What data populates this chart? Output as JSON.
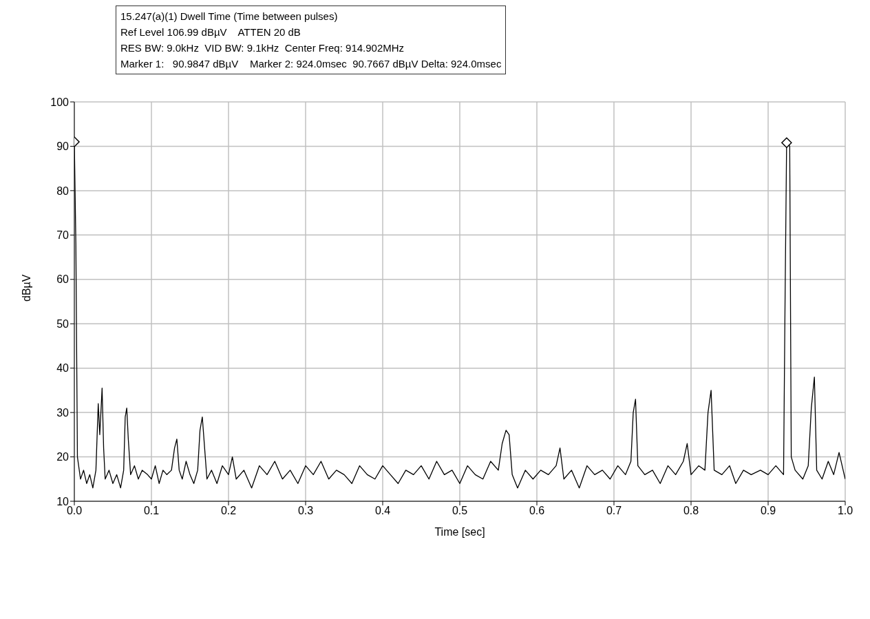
{
  "chart_data": {
    "type": "line",
    "title": "15.247(a)(1) Dwell Time (Time between pulses)",
    "annotations": [
      "Ref Level 106.99 dBµV    ATTEN 20 dB",
      "RES BW: 9.0kHz  VID BW: 9.1kHz  Center Freq: 914.902MHz",
      "Marker 1:   90.9847 dBµV    Marker 2: 924.0msec  90.7667 dBµV Delta: 924.0msec"
    ],
    "xlabel": "Time [sec]",
    "ylabel": "dBµV",
    "xlim": [
      0,
      1
    ],
    "xticks": [
      {
        "value": 0,
        "label": "0.0"
      },
      {
        "value": 0.1,
        "label": "0.1"
      },
      {
        "value": 0.2,
        "label": "0.2"
      },
      {
        "value": 0.3,
        "label": "0.3"
      },
      {
        "value": 0.4,
        "label": "0.4"
      },
      {
        "value": 0.5,
        "label": "0.5"
      },
      {
        "value": 0.6,
        "label": "0.6"
      },
      {
        "value": 0.7,
        "label": "0.7"
      },
      {
        "value": 0.8,
        "label": "0.8"
      },
      {
        "value": 0.9,
        "label": "0.9"
      },
      {
        "value": 1,
        "label": "1.0"
      }
    ],
    "ylim": [
      10,
      100
    ],
    "yticks": [
      10,
      20,
      30,
      40,
      50,
      60,
      70,
      80,
      90,
      100
    ],
    "grid": true,
    "series": [
      {
        "color": "#000000",
        "marker": "none",
        "line_style": "solid",
        "x": [
          0,
          0.002,
          0.004,
          0.008,
          0.012,
          0.016,
          0.02,
          0.024,
          0.028,
          0.031,
          0.033,
          0.036,
          0.038,
          0.04,
          0.045,
          0.05,
          0.055,
          0.06,
          0.064,
          0.066,
          0.068,
          0.07,
          0.073,
          0.078,
          0.083,
          0.088,
          0.095,
          0.1,
          0.105,
          0.11,
          0.115,
          0.12,
          0.126,
          0.13,
          0.133,
          0.136,
          0.14,
          0.145,
          0.15,
          0.155,
          0.16,
          0.163,
          0.166,
          0.169,
          0.172,
          0.178,
          0.185,
          0.192,
          0.2,
          0.205,
          0.21,
          0.22,
          0.23,
          0.24,
          0.25,
          0.26,
          0.27,
          0.28,
          0.29,
          0.3,
          0.31,
          0.32,
          0.33,
          0.34,
          0.35,
          0.36,
          0.37,
          0.38,
          0.39,
          0.4,
          0.41,
          0.42,
          0.43,
          0.44,
          0.45,
          0.46,
          0.47,
          0.48,
          0.49,
          0.5,
          0.51,
          0.52,
          0.53,
          0.54,
          0.55,
          0.555,
          0.56,
          0.564,
          0.568,
          0.575,
          0.585,
          0.595,
          0.605,
          0.615,
          0.625,
          0.63,
          0.635,
          0.645,
          0.655,
          0.665,
          0.675,
          0.685,
          0.695,
          0.705,
          0.715,
          0.722,
          0.725,
          0.728,
          0.731,
          0.74,
          0.75,
          0.76,
          0.77,
          0.78,
          0.79,
          0.795,
          0.8,
          0.81,
          0.818,
          0.822,
          0.826,
          0.83,
          0.84,
          0.85,
          0.858,
          0.868,
          0.878,
          0.89,
          0.9,
          0.91,
          0.92,
          0.922,
          0.924,
          0.928,
          0.93,
          0.935,
          0.945,
          0.952,
          0.956,
          0.96,
          0.963,
          0.97,
          0.978,
          0.985,
          0.992,
          1
        ],
        "values": [
          91,
          68,
          20,
          15,
          17,
          14,
          16,
          13,
          17,
          32,
          25,
          35.5,
          22,
          15,
          17,
          14,
          16,
          13,
          17,
          29,
          31,
          24,
          16,
          18,
          15,
          17,
          16,
          15,
          18,
          14,
          17,
          16,
          17,
          22,
          24,
          17,
          15,
          19,
          16,
          14,
          17,
          26,
          29,
          22,
          15,
          17,
          14,
          18,
          16,
          20,
          15,
          17,
          13,
          18,
          16,
          19,
          15,
          17,
          14,
          18,
          16,
          19,
          15,
          17,
          16,
          14,
          18,
          16,
          15,
          18,
          16,
          14,
          17,
          16,
          18,
          15,
          19,
          16,
          17,
          14,
          18,
          16,
          15,
          19,
          17,
          23,
          26,
          25,
          16,
          13,
          17,
          15,
          17,
          16,
          18,
          22,
          15,
          17,
          13,
          18,
          16,
          17,
          15,
          18,
          16,
          19,
          30,
          33,
          18,
          16,
          17,
          14,
          18,
          16,
          19,
          23,
          16,
          18,
          17,
          30,
          35,
          17,
          16,
          18,
          14,
          17,
          16,
          17,
          16,
          18,
          16,
          56,
          91,
          90,
          20,
          17,
          15,
          18,
          31,
          38,
          17,
          15,
          19,
          16,
          21,
          15
        ]
      },
      {
        "type": "scatter",
        "color": "#000000",
        "marker": "diamond",
        "x": [
          0,
          0.924
        ],
        "values": [
          91,
          90.8
        ]
      }
    ]
  }
}
